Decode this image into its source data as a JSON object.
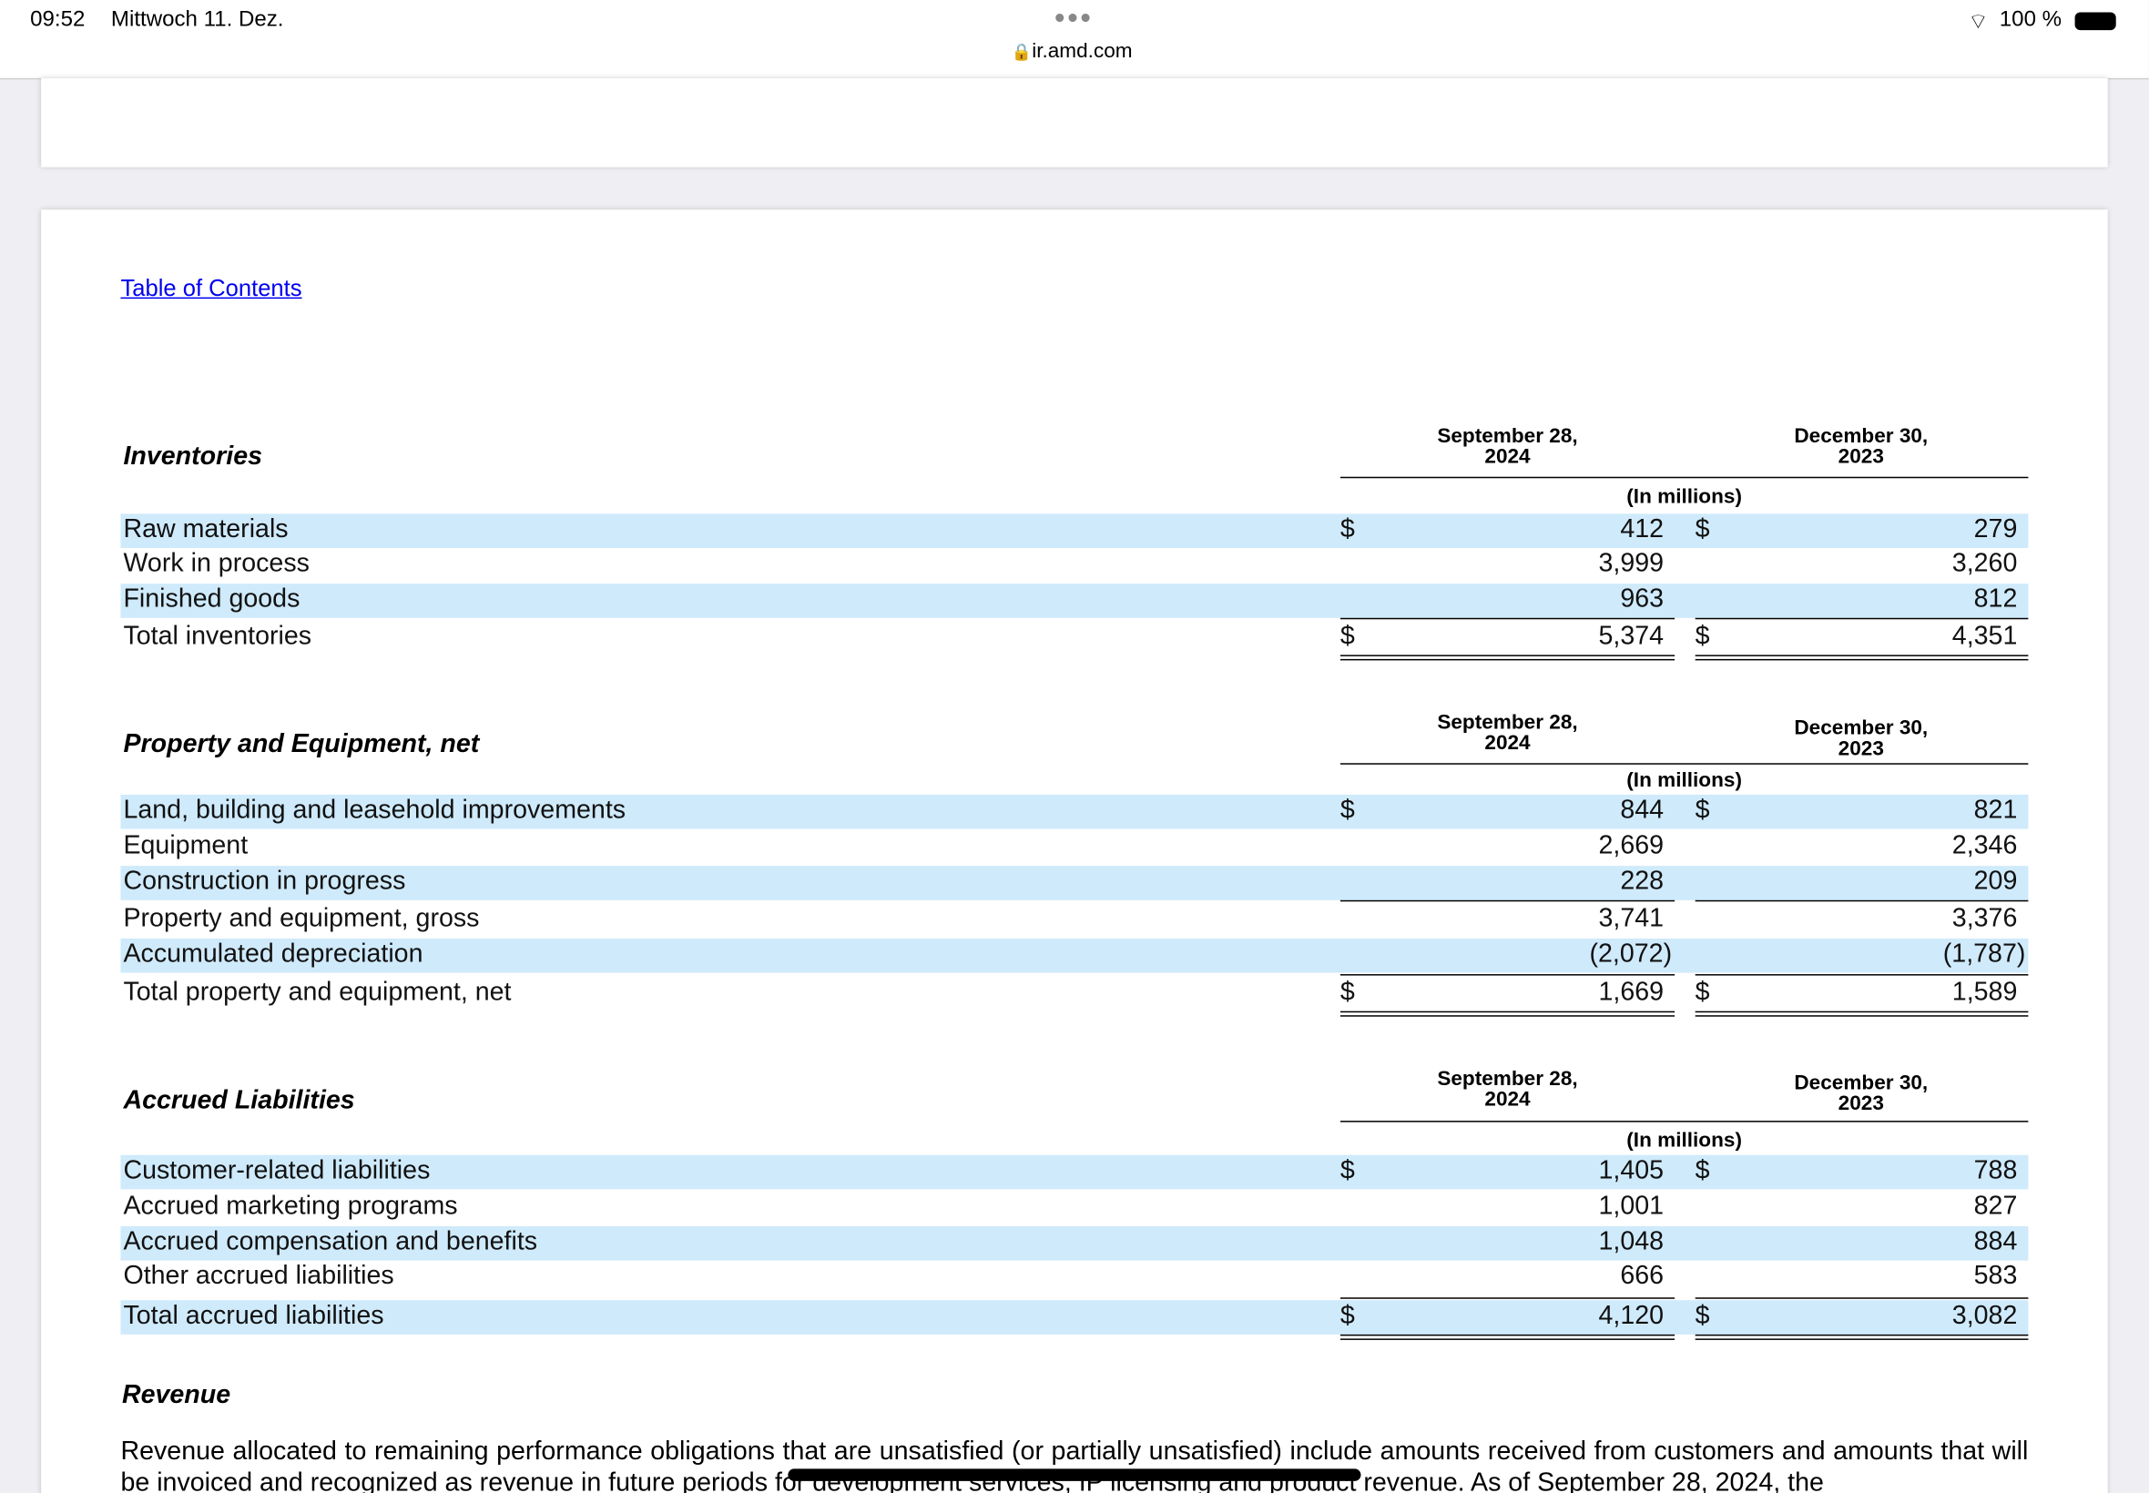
{
  "status_bar": {
    "time": "09:52",
    "date": "Mittwoch 11. Dez.",
    "url": "ir.amd.com",
    "battery": "100 %"
  },
  "document": {
    "toc_link": "Table of Contents",
    "tables": [
      {
        "title": "Inventories",
        "columns": [
          {
            "date": "September 28,",
            "year": "2024"
          },
          {
            "date": "December 30,",
            "year": "2023"
          }
        ],
        "unit": "(In millions)",
        "rows": [
          {
            "label": "Raw materials",
            "currency": "$",
            "v1": "412",
            "v2": "279"
          },
          {
            "label": "Work in process",
            "v1": "3,999",
            "v2": "3,260"
          },
          {
            "label": "Finished goods",
            "v1": "963",
            "v2": "812"
          },
          {
            "label": "Total inventories",
            "currency": "$",
            "v1": "5,374",
            "v2": "4,351"
          }
        ]
      },
      {
        "title": "Property and Equipment, net",
        "columns": [
          {
            "date": "September 28,",
            "year": "2024"
          },
          {
            "date": "December 30,",
            "year": "2023"
          }
        ],
        "unit": "(In millions)",
        "rows": [
          {
            "label": "Land, building and leasehold improvements",
            "currency": "$",
            "v1": "844",
            "v2": "821"
          },
          {
            "label": "Equipment",
            "v1": "2,669",
            "v2": "2,346"
          },
          {
            "label": "Construction in progress",
            "v1": "228",
            "v2": "209"
          },
          {
            "label": "Property and equipment, gross",
            "v1": "3,741",
            "v2": "3,376"
          },
          {
            "label": "Accumulated depreciation",
            "v1": "(2,072)",
            "v2": "(1,787)"
          },
          {
            "label": "Total property and equipment, net",
            "currency": "$",
            "v1": "1,669",
            "v2": "1,589"
          }
        ]
      },
      {
        "title": "Accrued Liabilities",
        "columns": [
          {
            "date": "September 28,",
            "year": "2024"
          },
          {
            "date": "December 30,",
            "year": "2023"
          }
        ],
        "unit": "(In millions)",
        "rows": [
          {
            "label": "Customer-related liabilities",
            "currency": "$",
            "v1": "1,405",
            "v2": "788"
          },
          {
            "label": "Accrued marketing programs",
            "v1": "1,001",
            "v2": "827"
          },
          {
            "label": "Accrued compensation and benefits",
            "v1": "1,048",
            "v2": "884"
          },
          {
            "label": "Other accrued liabilities",
            "v1": "666",
            "v2": "583"
          },
          {
            "label": "Total accrued liabilities",
            "currency": "$",
            "v1": "4,120",
            "v2": "3,082"
          }
        ]
      }
    ],
    "section_heading": "Revenue",
    "paragraph": "Revenue allocated to remaining performance obligations that are unsatisfied (or partially unsatisfied) include amounts received from customers and amounts that will be invoiced and recognized as revenue in future periods for development services, IP licensing and product revenue. As of September 28, 2024, the"
  }
}
